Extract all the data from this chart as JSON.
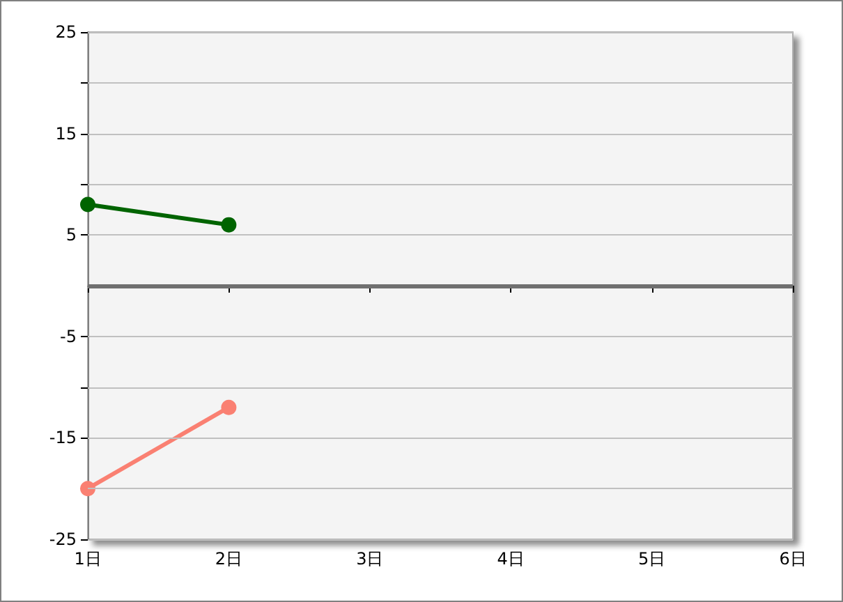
{
  "chart_data": {
    "type": "line",
    "categories": [
      "1日",
      "2日",
      "3日",
      "4日",
      "5日",
      "6日"
    ],
    "series": [
      {
        "color": "#006400",
        "values": [
          8,
          6,
          null,
          null,
          null,
          null
        ]
      },
      {
        "color": "#fa8072",
        "values": [
          -20,
          -12,
          null,
          null,
          null,
          null
        ]
      }
    ],
    "ylim": [
      -25,
      25
    ],
    "yticks": [
      -25,
      {
        "value": -20,
        "label": null
      },
      -15,
      {
        "value": -10,
        "label": null
      },
      -5,
      5,
      {
        "value": 10,
        "label": null
      },
      15,
      {
        "value": 20,
        "label": null
      },
      25
    ],
    "ref_lines": [
      {
        "axis": "y",
        "value": 0,
        "color": "#707070"
      }
    ],
    "grid": "y",
    "marker": "circle",
    "line_style": "solid"
  }
}
